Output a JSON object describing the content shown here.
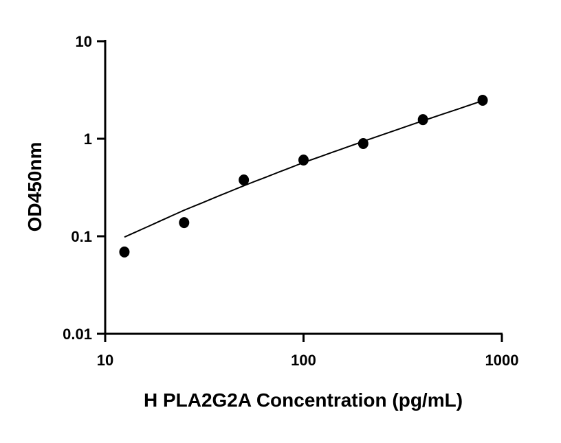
{
  "chart_data": {
    "type": "scatter",
    "title": "",
    "xlabel": "H PLA2G2A Concentration (pg/mL)",
    "ylabel": "OD450nm",
    "xscale": "log",
    "yscale": "log",
    "xlim": [
      10,
      1000
    ],
    "ylim": [
      0.01,
      10
    ],
    "xticks": [
      {
        "value": 10,
        "label": "10"
      },
      {
        "value": 100,
        "label": "100"
      },
      {
        "value": 1000,
        "label": "1000"
      }
    ],
    "yticks": [
      {
        "value": 0.01,
        "label": "0.01"
      },
      {
        "value": 0.1,
        "label": "0.1"
      },
      {
        "value": 1,
        "label": "1"
      },
      {
        "value": 10,
        "label": "10"
      }
    ],
    "grid": false,
    "legend": "none",
    "points": {
      "x": [
        12.5,
        25,
        50,
        100,
        200,
        400,
        800
      ],
      "y": [
        0.069,
        0.138,
        0.378,
        0.605,
        0.893,
        1.57,
        2.48
      ]
    },
    "fit_curve": {
      "x": [
        12.5,
        25,
        50,
        100,
        200,
        400,
        800
      ],
      "y": [
        0.098,
        0.185,
        0.33,
        0.57,
        0.94,
        1.53,
        2.45
      ]
    },
    "colors": {
      "points": "#000000",
      "curve": "#000000",
      "axes": "#000000"
    }
  }
}
